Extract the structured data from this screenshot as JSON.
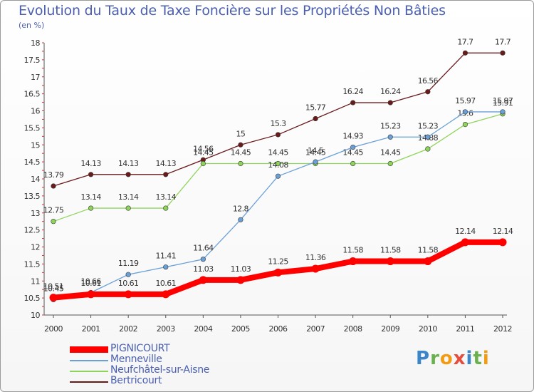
{
  "title": "Evolution du Taux de Taxe Foncière sur les Propriétés Non Bâties",
  "unit": "(en %)",
  "logo": {
    "letters": [
      "P",
      "r",
      "o",
      "x",
      "i",
      "t",
      "i"
    ],
    "colors": [
      "#3a86c8",
      "#6ab04c",
      "#f39c12",
      "#e74c3c",
      "#3a86c8",
      "#6ab04c",
      "#f39c12"
    ]
  },
  "chart_data": {
    "type": "line",
    "x": [
      2000,
      2001,
      2002,
      2003,
      2004,
      2005,
      2006,
      2007,
      2008,
      2009,
      2010,
      2011,
      2012
    ],
    "ylim": [
      10,
      18
    ],
    "yticks": [
      "10",
      "10.5",
      "11",
      "11.5",
      "12",
      "12.5",
      "13",
      "13.5",
      "14",
      "14.5",
      "15",
      "15.5",
      "16",
      "16.5",
      "17",
      "17.5",
      "18"
    ],
    "grid": false,
    "legend_position": "bottom-left",
    "series": [
      {
        "name": "Bertricourt",
        "color": "#6b1a1a",
        "values": [
          13.79,
          14.13,
          14.13,
          14.13,
          14.56,
          15,
          15.3,
          15.77,
          16.24,
          16.24,
          16.56,
          17.7,
          17.7
        ],
        "labels": [
          "13.79",
          "14.13",
          "14.13",
          "14.13",
          "14.56",
          "15",
          "15.3",
          "15.77",
          "16.24",
          "16.24",
          "16.56",
          "17.7",
          "17.7"
        ]
      },
      {
        "name": "Neufchâtel-sur-Aisne",
        "color": "#8fd45a",
        "values": [
          12.75,
          13.14,
          13.14,
          13.14,
          14.45,
          14.45,
          14.45,
          14.45,
          14.45,
          14.45,
          14.88,
          15.6,
          15.91
        ],
        "labels": [
          "12.75",
          "13.14",
          "13.14",
          "13.14",
          "14.45",
          "14.45",
          "14.45",
          "14.45",
          "14.45",
          "14.45",
          "14.88",
          "15.6",
          "15.91"
        ]
      },
      {
        "name": "Menneville",
        "color": "#6aa0d8",
        "values": [
          10.45,
          10.66,
          11.19,
          11.41,
          11.64,
          12.8,
          14.08,
          14.5,
          14.93,
          15.23,
          15.23,
          15.97,
          15.97
        ],
        "labels": [
          "10.45",
          "10.66",
          "11.19",
          "11.41",
          "11.64",
          "12.8",
          "14.08",
          "14.5",
          "14.93",
          "15.23",
          "15.23",
          "15.97",
          "15.97"
        ]
      },
      {
        "name": "PIGNICOURT",
        "color": "#ff0000",
        "values": [
          10.51,
          10.61,
          10.61,
          10.61,
          11.03,
          11.03,
          11.25,
          11.36,
          11.58,
          11.58,
          11.58,
          12.14,
          12.14
        ],
        "labels": [
          "10.51",
          "10.61",
          "10.61",
          "10.61",
          "11.03",
          "11.03",
          "11.25",
          "11.36",
          "11.58",
          "11.58",
          "11.58",
          "12.14",
          "12.14"
        ]
      }
    ],
    "legend_order": [
      "PIGNICOURT",
      "Menneville",
      "Neufchâtel-sur-Aisne",
      "Bertricourt"
    ]
  }
}
